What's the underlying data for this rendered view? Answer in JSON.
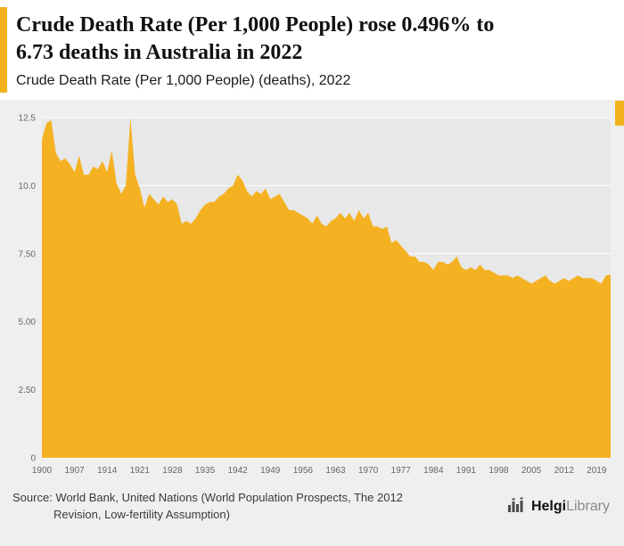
{
  "header": {
    "title_line1": "Crude Death Rate (Per 1,000 People) rose 0.496% to",
    "title_line2": "6.73 deaths in Australia in 2022",
    "subtitle": "Crude Death Rate (Per 1,000 People) (deaths), 2022",
    "accent_color": "#f2b21e"
  },
  "footer": {
    "source_line1": "Source: World Bank, United Nations (World Population Prospects, The 2012",
    "source_line2": "Revision, Low-fertility Assumption)",
    "logo_bold": "Helgi",
    "logo_light": "Library"
  },
  "chart_data": {
    "type": "area",
    "title": "Crude Death Rate (Per 1,000 People) (deaths), 2022",
    "series_name": "Crude Death Rate (Per 1,000 People), Australia",
    "x_start": 1900,
    "x_end": 2022,
    "values": [
      11.7,
      12.3,
      12.4,
      11.2,
      10.9,
      11.0,
      10.8,
      10.5,
      11.1,
      10.4,
      10.4,
      10.7,
      10.6,
      10.9,
      10.5,
      11.3,
      10.1,
      9.7,
      10.0,
      12.5,
      10.4,
      9.9,
      9.2,
      9.7,
      9.5,
      9.3,
      9.6,
      9.4,
      9.5,
      9.3,
      8.6,
      8.7,
      8.6,
      8.8,
      9.1,
      9.3,
      9.4,
      9.4,
      9.6,
      9.7,
      9.9,
      10.0,
      10.4,
      10.2,
      9.8,
      9.6,
      9.8,
      9.7,
      9.9,
      9.5,
      9.6,
      9.7,
      9.4,
      9.1,
      9.1,
      9.0,
      8.9,
      8.8,
      8.6,
      8.9,
      8.6,
      8.5,
      8.7,
      8.8,
      9.0,
      8.8,
      9.0,
      8.7,
      9.1,
      8.8,
      9.0,
      8.5,
      8.5,
      8.4,
      8.5,
      7.9,
      8.0,
      7.8,
      7.6,
      7.4,
      7.4,
      7.2,
      7.2,
      7.1,
      6.9,
      7.2,
      7.2,
      7.1,
      7.2,
      7.4,
      7.0,
      6.9,
      7.0,
      6.9,
      7.1,
      6.9,
      6.9,
      6.8,
      6.7,
      6.7,
      6.7,
      6.6,
      6.7,
      6.6,
      6.5,
      6.4,
      6.5,
      6.6,
      6.7,
      6.5,
      6.4,
      6.5,
      6.6,
      6.5,
      6.6,
      6.7,
      6.6,
      6.6,
      6.6,
      6.5,
      6.4,
      6.7,
      6.73
    ],
    "x_ticks": [
      1900,
      1907,
      1914,
      1921,
      1928,
      1935,
      1942,
      1949,
      1956,
      1963,
      1970,
      1977,
      1984,
      1991,
      1998,
      2005,
      2012,
      2019
    ],
    "y_ticks": [
      {
        "value": 0,
        "label": "0"
      },
      {
        "value": 2.5,
        "label": "2.50"
      },
      {
        "value": 5,
        "label": "5.00"
      },
      {
        "value": 7.5,
        "label": "7.50"
      },
      {
        "value": 10,
        "label": "10.0"
      },
      {
        "value": 12.5,
        "label": "12.5"
      }
    ],
    "ylim": [
      0,
      12.5
    ],
    "area_color": "#f4b223",
    "plot_bg": "#e8e8e8",
    "grid_color": "#ffffff",
    "last_value": 6.73,
    "last_year": 2022,
    "change_pct": "0.496%"
  }
}
